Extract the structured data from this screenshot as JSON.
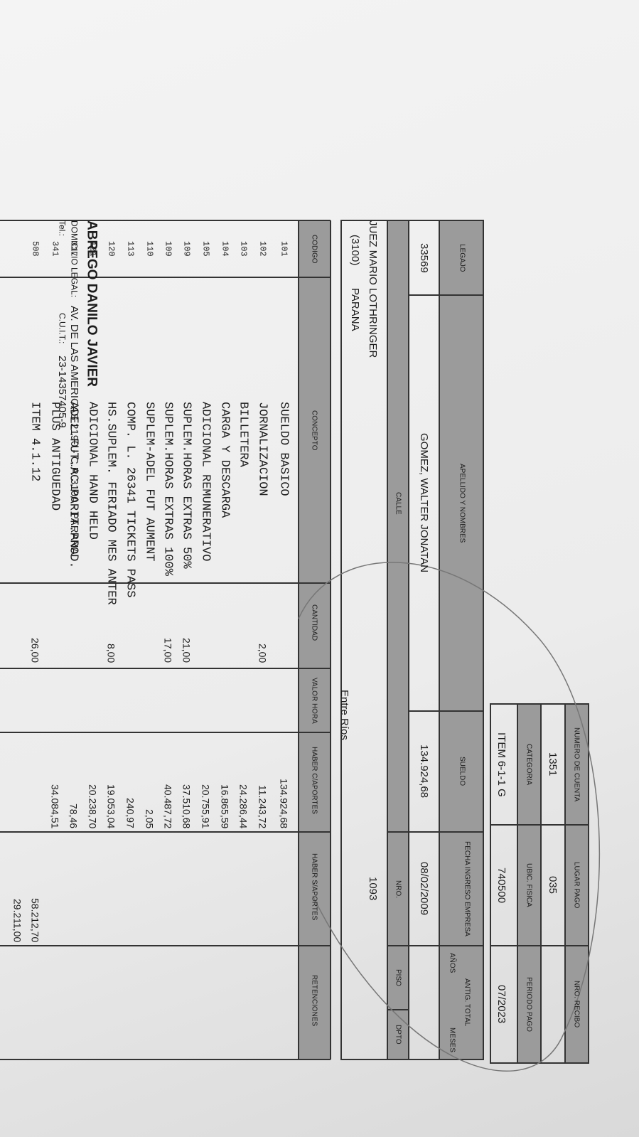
{
  "header": {
    "company": "ABREGO DANILO JAVIER",
    "address_label": "DOMICILIO LEGAL:",
    "address": "AV. DE LAS AMERICAS 2190 - C.P. 3100 - PARANA",
    "phone_label": "Tel.:",
    "cuit_label": "C.U.I.T.:",
    "cuit": "23-14357405-9"
  },
  "account": {
    "headers": [
      [
        "NUMERO DE CUENTA",
        "LUGAR PAGO",
        "NRO. RECIBO"
      ],
      [
        "CATEGORIA",
        "UBIC. FISICA",
        "PERIODO PAGO"
      ]
    ],
    "values": [
      [
        "1351",
        "035",
        null
      ],
      [
        "ITEM 6-1-1 G",
        "740500",
        "07/2023"
      ]
    ]
  },
  "employee": {
    "headers": [
      "LEGAJO",
      "APELLIDO Y NOMBRES",
      "SUELDO",
      "FECHA INGRESO EMPRESA",
      "ANTIG. TOTAL"
    ],
    "antig_sub": [
      "AÑOS",
      "MESES"
    ],
    "values": [
      "33569",
      "GOMEZ, WALTER JONATAN",
      "134.924,68",
      "08/02/2009",
      null
    ]
  },
  "address": {
    "headers": [
      "CALLE",
      "NRO.",
      "PISO",
      "DPTO"
    ],
    "street": "JUEZ MARIO LOTHRINGER",
    "postal_code": "(3100)",
    "city": "PARANA",
    "province": "Entre Ríos",
    "number": "1093"
  },
  "table": {
    "columns": [
      "CODIGO",
      "CONCEPTO",
      "CANTIDAD",
      "VALOR HORA",
      "HABER C/APORTES",
      "HABER S/APORTES",
      "RETENCIONES"
    ],
    "rows": [
      [
        "101",
        "SUELDO BASICO",
        null,
        null,
        "134.924,68",
        null,
        null
      ],
      [
        "102",
        "JORNALIZACION",
        "2,00",
        null,
        "11.243,72",
        null,
        null
      ],
      [
        "103",
        "BILLETERA",
        null,
        null,
        "24.286,44",
        null,
        null
      ],
      [
        "104",
        "CARGA Y DESCARGA",
        null,
        null,
        "16.865,59",
        null,
        null
      ],
      [
        "105",
        "ADICIONAL REMUNERATIVO",
        null,
        null,
        "20.755,91",
        null,
        null
      ],
      [
        "109",
        "SUPLEM.HORAS EXTRAS 50%",
        "21,00",
        null,
        "37.510,68",
        null,
        null
      ],
      [
        "109",
        "SUPLEM.HORAS EXTRAS 100%",
        "17,00",
        null,
        "40.487,72",
        null,
        null
      ],
      [
        "110",
        "SUPLEM-ADEL FUT AUMENT",
        null,
        null,
        "2,05",
        null,
        null
      ],
      [
        "113",
        "COMP. L.   26341 TICKETS PASS",
        null,
        null,
        "240,97",
        null,
        null
      ],
      [
        "120",
        "HS.SUPLEM. FERIADO MES  ANTER",
        "8,00",
        null,
        "19.053,04",
        null,
        null
      ],
      [
        "121",
        "ADICIONAL HAND HELD",
        null,
        null,
        "20.238,70",
        null,
        null
      ],
      [
        "317",
        "ADEL.FUT.AC.PARIT.PROD.",
        null,
        null,
        "78,46",
        null,
        null
      ],
      [
        "341",
        "PLUS ANTIGUEDAD",
        null,
        null,
        "34.084,51",
        null,
        null
      ],
      [
        "508",
        "ITEM 4.1.12",
        "26,00",
        null,
        null,
        "58.212,70",
        null
      ],
      [
        null,
        null,
        null,
        null,
        null,
        "29.211,00",
        null
      ]
    ]
  }
}
